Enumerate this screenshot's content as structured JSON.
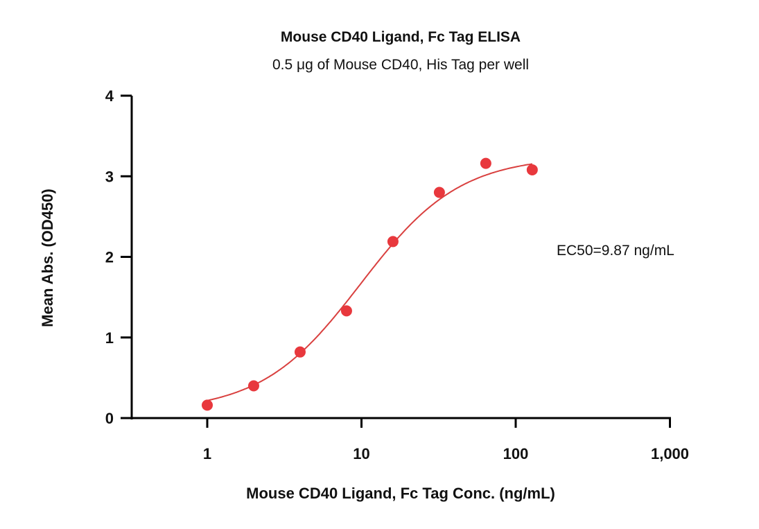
{
  "chart_data": {
    "type": "scatter",
    "title": "Mouse CD40 Ligand, Fc Tag ELISA",
    "subtitle": "0.5 μg of Mouse CD40, His Tag per well",
    "xlabel": "Mouse CD40 Ligand, Fc Tag Conc. (ng/mL)",
    "ylabel": "Mean Abs. (OD450)",
    "xscale": "log",
    "xlim": [
      1,
      1000
    ],
    "ylim": [
      0,
      4
    ],
    "xticks": [
      1,
      10,
      100,
      1000
    ],
    "xtick_labels": [
      "1",
      "10",
      "100",
      "1,000"
    ],
    "yticks": [
      0,
      1,
      2,
      3,
      4
    ],
    "ytick_labels": [
      "0",
      "1",
      "2",
      "3",
      "4"
    ],
    "grid": false,
    "series": [
      {
        "name": "Mouse CD40 Ligand, Fc Tag",
        "color": "#e8383d",
        "x": [
          1,
          2,
          4,
          8,
          16,
          32,
          64,
          128
        ],
        "y": [
          0.16,
          0.4,
          0.82,
          1.33,
          2.19,
          2.8,
          3.16,
          3.08
        ]
      }
    ],
    "fit": {
      "model": "4PL",
      "bottom": 0.08,
      "top": 3.25,
      "ec50": 9.87,
      "hill": 1.35,
      "x_range": [
        1,
        128
      ],
      "color": "#d9403f"
    },
    "annotation": "EC50=9.87 ng/mL"
  }
}
